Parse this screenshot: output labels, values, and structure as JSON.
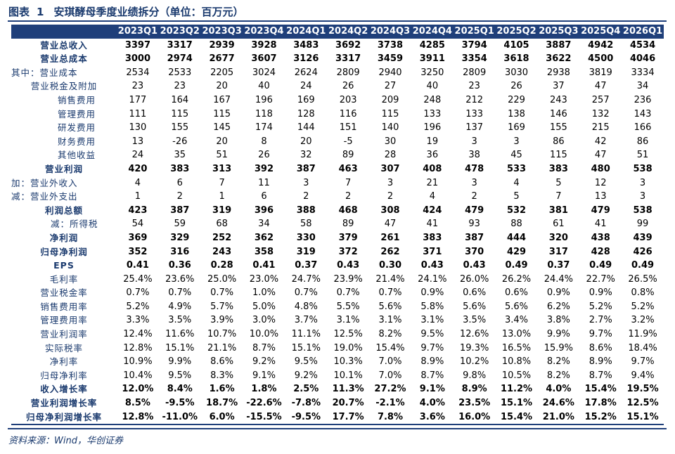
{
  "title": {
    "prefix": "图表",
    "number": "1",
    "text": "安琪酵母季度业绩拆分（单位：百万元）"
  },
  "table": {
    "columns": [
      "2023Q1",
      "2023Q2",
      "2023Q3",
      "2023Q4",
      "2024Q1",
      "2024Q2",
      "2024Q3",
      "2024Q4",
      "2025Q1",
      "2025Q2",
      "2025Q3",
      "2025Q4",
      "2026Q1"
    ],
    "rows": [
      {
        "label": "营业总收入",
        "style": "bold center",
        "values": [
          "3397",
          "3317",
          "2939",
          "3928",
          "3483",
          "3692",
          "3738",
          "4285",
          "3794",
          "4105",
          "3887",
          "4942",
          "4534"
        ]
      },
      {
        "label": "营业总成本",
        "style": "bold center",
        "values": [
          "3000",
          "2974",
          "2677",
          "3607",
          "3126",
          "3317",
          "3459",
          "3911",
          "3354",
          "3618",
          "3622",
          "4500",
          "4046"
        ]
      },
      {
        "label": "其中：营业成本",
        "style": "plain",
        "values": [
          "2534",
          "2533",
          "2205",
          "3024",
          "2624",
          "2809",
          "2940",
          "3250",
          "2809",
          "3030",
          "2938",
          "3819",
          "3334"
        ]
      },
      {
        "label": "营业税金及附加",
        "style": "plain center",
        "values": [
          "23",
          "23",
          "20",
          "40",
          "24",
          "26",
          "27",
          "40",
          "23",
          "26",
          "37",
          "47",
          "34"
        ]
      },
      {
        "label": "销售费用",
        "style": "plain indent3",
        "values": [
          "177",
          "164",
          "167",
          "196",
          "169",
          "203",
          "209",
          "248",
          "212",
          "229",
          "243",
          "257",
          "236"
        ]
      },
      {
        "label": "管理费用",
        "style": "plain indent3",
        "values": [
          "111",
          "115",
          "115",
          "118",
          "128",
          "116",
          "115",
          "133",
          "133",
          "138",
          "146",
          "132",
          "143"
        ]
      },
      {
        "label": "研发费用",
        "style": "plain indent3",
        "values": [
          "130",
          "155",
          "145",
          "174",
          "144",
          "151",
          "140",
          "196",
          "137",
          "169",
          "155",
          "215",
          "166"
        ]
      },
      {
        "label": "财务费用",
        "style": "plain indent3",
        "values": [
          "13",
          "-26",
          "20",
          "8",
          "20",
          "-5",
          "30",
          "19",
          "3",
          "3",
          "86",
          "42",
          "86"
        ]
      },
      {
        "label": "其他收益",
        "style": "plain indent3",
        "values": [
          "24",
          "35",
          "51",
          "26",
          "32",
          "89",
          "28",
          "36",
          "38",
          "45",
          "115",
          "47",
          "51"
        ]
      },
      {
        "label": "营业利润",
        "style": "bold center",
        "values": [
          "420",
          "383",
          "313",
          "392",
          "387",
          "463",
          "307",
          "408",
          "478",
          "533",
          "383",
          "480",
          "538"
        ]
      },
      {
        "label": "加：营业外收入",
        "style": "plain",
        "values": [
          "4",
          "6",
          "7",
          "11",
          "3",
          "7",
          "3",
          "21",
          "3",
          "4",
          "5",
          "12",
          "3"
        ]
      },
      {
        "label": "减：营业外支出",
        "style": "plain",
        "values": [
          "1",
          "2",
          "1",
          "6",
          "2",
          "2",
          "2",
          "4",
          "2",
          "5",
          "7",
          "13",
          "3"
        ]
      },
      {
        "label": "利润总额",
        "style": "bold center",
        "values": [
          "423",
          "387",
          "319",
          "396",
          "388",
          "468",
          "308",
          "424",
          "479",
          "532",
          "381",
          "479",
          "538"
        ]
      },
      {
        "label": "减：所得税",
        "style": "plain indent2",
        "values": [
          "54",
          "59",
          "68",
          "34",
          "58",
          "89",
          "47",
          "41",
          "93",
          "88",
          "61",
          "41",
          "99"
        ]
      },
      {
        "label": "净利润",
        "style": "bold center",
        "values": [
          "369",
          "329",
          "252",
          "362",
          "330",
          "379",
          "261",
          "383",
          "387",
          "444",
          "320",
          "438",
          "439"
        ]
      },
      {
        "label": "归母净利润",
        "style": "bold center",
        "values": [
          "352",
          "316",
          "243",
          "358",
          "319",
          "372",
          "262",
          "371",
          "370",
          "429",
          "317",
          "428",
          "426"
        ]
      },
      {
        "label": "EPS",
        "style": "bold center",
        "values": [
          "0.41",
          "0.36",
          "0.28",
          "0.41",
          "0.37",
          "0.43",
          "0.30",
          "0.43",
          "0.43",
          "0.49",
          "0.37",
          "0.49",
          "0.49"
        ]
      },
      {
        "label": "毛利率",
        "style": "plain center",
        "values": [
          "25.4%",
          "23.6%",
          "25.0%",
          "23.0%",
          "24.7%",
          "23.9%",
          "21.4%",
          "24.1%",
          "26.0%",
          "26.2%",
          "24.4%",
          "22.7%",
          "26.5%"
        ]
      },
      {
        "label": "营业税金率",
        "style": "plain center",
        "values": [
          "0.7%",
          "0.7%",
          "0.7%",
          "1.0%",
          "0.7%",
          "0.7%",
          "0.7%",
          "0.9%",
          "0.6%",
          "0.6%",
          "0.9%",
          "0.9%",
          "0.8%"
        ]
      },
      {
        "label": "销售费用率",
        "style": "plain center",
        "values": [
          "5.2%",
          "4.9%",
          "5.7%",
          "5.0%",
          "4.8%",
          "5.5%",
          "5.6%",
          "5.8%",
          "5.6%",
          "5.6%",
          "6.2%",
          "5.2%",
          "5.2%"
        ]
      },
      {
        "label": "管理费用率",
        "style": "plain center",
        "values": [
          "3.3%",
          "3.5%",
          "3.9%",
          "3.0%",
          "3.7%",
          "3.1%",
          "3.1%",
          "3.1%",
          "3.5%",
          "3.4%",
          "3.8%",
          "2.7%",
          "3.2%"
        ]
      },
      {
        "label": "营业利润率",
        "style": "plain center",
        "values": [
          "12.4%",
          "11.6%",
          "10.7%",
          "10.0%",
          "11.1%",
          "12.5%",
          "8.2%",
          "9.5%",
          "12.6%",
          "13.0%",
          "9.9%",
          "9.7%",
          "11.9%"
        ]
      },
      {
        "label": "实际税率",
        "style": "plain center",
        "values": [
          "12.8%",
          "15.1%",
          "21.1%",
          "8.7%",
          "15.1%",
          "19.0%",
          "15.4%",
          "9.7%",
          "19.3%",
          "16.5%",
          "15.9%",
          "8.6%",
          "18.4%"
        ]
      },
      {
        "label": "净利率",
        "style": "plain center",
        "values": [
          "10.9%",
          "9.9%",
          "8.6%",
          "9.2%",
          "9.5%",
          "10.3%",
          "7.0%",
          "8.9%",
          "10.2%",
          "10.8%",
          "8.2%",
          "8.9%",
          "9.7%"
        ]
      },
      {
        "label": "归母净利率",
        "style": "plain center",
        "values": [
          "10.4%",
          "9.5%",
          "8.3%",
          "9.1%",
          "9.2%",
          "10.1%",
          "7.0%",
          "8.7%",
          "9.8%",
          "10.5%",
          "8.2%",
          "8.7%",
          "9.4%"
        ]
      },
      {
        "label": "收入增长率",
        "style": "bold center",
        "values": [
          "12.0%",
          "8.4%",
          "1.6%",
          "1.8%",
          "2.5%",
          "11.3%",
          "27.2%",
          "9.1%",
          "8.9%",
          "11.2%",
          "4.0%",
          "15.4%",
          "19.5%"
        ]
      },
      {
        "label": "营业利润增长率",
        "style": "bold center",
        "values": [
          "8.5%",
          "-9.5%",
          "18.7%",
          "-22.6%",
          "-7.8%",
          "20.7%",
          "-2.1%",
          "4.0%",
          "23.5%",
          "15.1%",
          "24.6%",
          "17.8%",
          "12.5%"
        ]
      },
      {
        "label": "归母净利润增长率",
        "style": "bold center",
        "values": [
          "12.8%",
          "-11.0%",
          "6.0%",
          "-15.5%",
          "-9.5%",
          "17.7%",
          "7.8%",
          "3.6%",
          "16.0%",
          "15.4%",
          "21.0%",
          "15.2%",
          "15.1%"
        ]
      }
    ]
  },
  "source": "资料来源：Wind，华创证券",
  "colors": {
    "header_bg": "#1f3f7a",
    "header_text": "#ffffff",
    "label_text": "#1a3a6e"
  }
}
